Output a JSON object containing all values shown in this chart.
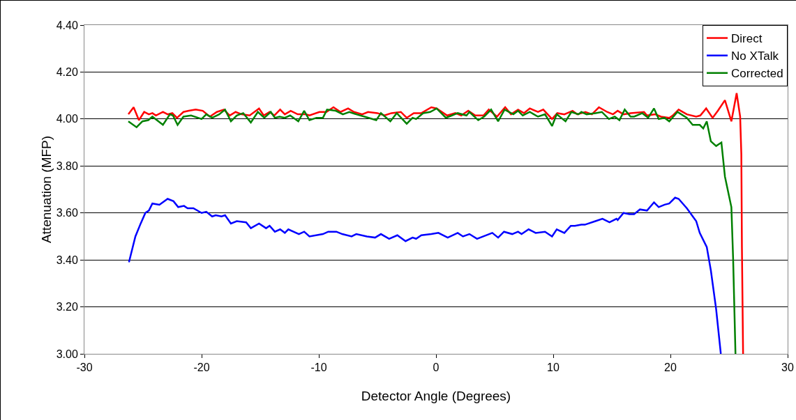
{
  "chart_data": {
    "type": "line",
    "xlabel": "Detector Angle (Degrees)",
    "ylabel": "Attenuation (MFP)",
    "xlim": [
      -30,
      30
    ],
    "xticks": [
      -30,
      -20,
      -10,
      0,
      10,
      20,
      30
    ],
    "ylim": [
      3.0,
      4.4
    ],
    "yticks": [
      {
        "value": 3.0,
        "label": "3.00"
      },
      {
        "value": 3.2,
        "label": "3.20"
      },
      {
        "value": 3.4,
        "label": "3.40"
      },
      {
        "value": 3.6,
        "label": "3.60"
      },
      {
        "value": 3.8,
        "label": "3.80"
      },
      {
        "value": 4.0,
        "label": "4.00"
      },
      {
        "value": 4.2,
        "label": "4.20"
      },
      {
        "value": 4.4,
        "label": "4.40"
      }
    ],
    "grid": "y",
    "legend": "top right",
    "marker": "none",
    "line_style": "solid",
    "series": [
      {
        "name": "Direct",
        "color": "#ff0000",
        "x": [
          -26.25,
          -25.8,
          -25.35,
          -24.9,
          -24.5,
          -24.2,
          -23.9,
          -23.3,
          -22.9,
          -22.5,
          -22.1,
          -21.55,
          -21.1,
          -20.5,
          -19.9,
          -19.3,
          -18.7,
          -18.1,
          -17.6,
          -17.1,
          -16.6,
          -15.9,
          -15.1,
          -14.7,
          -14.2,
          -13.8,
          -13.3,
          -12.9,
          -12.4,
          -11.8,
          -11.1,
          -10.8,
          -9.95,
          -9.35,
          -8.75,
          -8.15,
          -7.5,
          -7.0,
          -6.3,
          -5.8,
          -5.0,
          -4.4,
          -3.8,
          -3.0,
          -2.5,
          -1.9,
          -1.25,
          -0.4,
          0.05,
          0.95,
          1.65,
          2.15,
          2.75,
          3.35,
          4.05,
          4.5,
          5.2,
          5.9,
          6.4,
          7.0,
          7.5,
          8.0,
          8.7,
          9.15,
          9.9,
          10.35,
          10.95,
          11.65,
          12.05,
          12.75,
          13.3,
          13.9,
          14.6,
          15.1,
          15.5,
          16.0,
          16.6,
          17.75,
          18.0,
          18.7,
          19.2,
          19.9,
          20.2,
          20.7,
          21.4,
          22.2,
          22.55,
          23.05,
          23.6,
          24.05,
          24.65,
          25.2,
          25.65,
          25.95,
          26.05,
          26.1,
          26.2
        ],
        "values": [
          4.02,
          4.05,
          3.995,
          4.03,
          4.02,
          4.025,
          4.015,
          4.03,
          4.02,
          4.025,
          4.005,
          4.03,
          4.035,
          4.04,
          4.035,
          4.01,
          4.03,
          4.04,
          4.015,
          4.03,
          4.02,
          4.015,
          4.045,
          4.015,
          4.03,
          4.015,
          4.04,
          4.02,
          4.035,
          4.02,
          4.02,
          4.015,
          4.03,
          4.03,
          4.05,
          4.03,
          4.045,
          4.03,
          4.02,
          4.03,
          4.025,
          4.015,
          4.025,
          4.03,
          4.005,
          4.025,
          4.025,
          4.05,
          4.045,
          4.015,
          4.025,
          4.015,
          4.035,
          4.015,
          4.015,
          4.04,
          4.01,
          4.05,
          4.02,
          4.04,
          4.025,
          4.045,
          4.03,
          4.04,
          4.0,
          4.025,
          4.02,
          4.035,
          4.02,
          4.03,
          4.02,
          4.05,
          4.03,
          4.02,
          4.035,
          4.02,
          4.025,
          4.03,
          4.015,
          4.02,
          4.01,
          4.005,
          4.015,
          4.04,
          4.02,
          4.01,
          4.015,
          4.045,
          4.005,
          4.035,
          4.08,
          3.99,
          4.11,
          4.01,
          3.85,
          3.455,
          3.0
        ]
      },
      {
        "name": "No XTalk",
        "color": "#0000ff",
        "x": [
          -26.2,
          -25.65,
          -25.2,
          -24.8,
          -24.5,
          -24.2,
          -23.6,
          -22.9,
          -22.4,
          -22.0,
          -21.5,
          -21.2,
          -20.7,
          -20.0,
          -19.6,
          -19.1,
          -18.8,
          -18.3,
          -18.0,
          -17.5,
          -17.0,
          -16.2,
          -15.8,
          -15.1,
          -14.5,
          -14.2,
          -13.75,
          -13.3,
          -12.9,
          -12.6,
          -11.7,
          -11.25,
          -10.8,
          -9.65,
          -9.2,
          -8.5,
          -8.0,
          -7.2,
          -6.8,
          -5.9,
          -5.2,
          -4.7,
          -4.0,
          -3.3,
          -2.6,
          -2.0,
          -1.7,
          -1.25,
          -0.4,
          0.2,
          1.0,
          1.85,
          2.3,
          2.85,
          3.5,
          4.8,
          5.3,
          5.8,
          6.5,
          7.0,
          7.3,
          7.9,
          8.5,
          9.3,
          9.9,
          10.3,
          10.95,
          11.5,
          11.85,
          12.4,
          12.7,
          13.6,
          14.2,
          14.8,
          15.4,
          15.5,
          16.0,
          16.5,
          16.9,
          17.4,
          18.0,
          18.6,
          19.0,
          19.5,
          19.9,
          20.4,
          20.7,
          21.4,
          22.2,
          22.5,
          23.1,
          23.45,
          23.9,
          24.3
        ],
        "values": [
          3.39,
          3.5,
          3.555,
          3.6,
          3.61,
          3.64,
          3.635,
          3.66,
          3.65,
          3.625,
          3.63,
          3.62,
          3.62,
          3.6,
          3.605,
          3.585,
          3.59,
          3.585,
          3.59,
          3.555,
          3.565,
          3.56,
          3.535,
          3.555,
          3.535,
          3.545,
          3.52,
          3.53,
          3.515,
          3.53,
          3.51,
          3.52,
          3.5,
          3.51,
          3.52,
          3.52,
          3.51,
          3.5,
          3.51,
          3.5,
          3.495,
          3.51,
          3.49,
          3.505,
          3.48,
          3.495,
          3.49,
          3.505,
          3.51,
          3.515,
          3.495,
          3.515,
          3.5,
          3.51,
          3.49,
          3.515,
          3.495,
          3.52,
          3.51,
          3.52,
          3.51,
          3.53,
          3.515,
          3.52,
          3.5,
          3.53,
          3.515,
          3.545,
          3.545,
          3.55,
          3.55,
          3.565,
          3.575,
          3.56,
          3.575,
          3.57,
          3.6,
          3.595,
          3.595,
          3.615,
          3.61,
          3.645,
          3.625,
          3.635,
          3.64,
          3.665,
          3.66,
          3.62,
          3.565,
          3.515,
          3.455,
          3.355,
          3.19,
          3.0
        ]
      },
      {
        "name": "Corrected",
        "color": "#008000",
        "x": [
          -26.25,
          -25.55,
          -25.05,
          -24.55,
          -24.2,
          -23.3,
          -22.7,
          -22.45,
          -22.05,
          -21.55,
          -20.9,
          -20.0,
          -19.6,
          -19.1,
          -18.5,
          -18.0,
          -17.5,
          -17.0,
          -16.45,
          -15.8,
          -15.2,
          -14.65,
          -14.1,
          -13.75,
          -13.35,
          -12.9,
          -12.45,
          -11.75,
          -11.25,
          -10.8,
          -10.2,
          -9.65,
          -9.3,
          -8.55,
          -7.95,
          -7.4,
          -6.8,
          -6.1,
          -5.1,
          -4.7,
          -3.9,
          -3.35,
          -2.5,
          -2.0,
          -1.7,
          -1.1,
          -0.5,
          0.05,
          0.85,
          1.85,
          2.6,
          2.85,
          3.6,
          4.1,
          4.7,
          5.3,
          5.85,
          6.6,
          7.0,
          7.4,
          8.0,
          8.7,
          9.3,
          9.9,
          10.3,
          11.05,
          11.55,
          12.15,
          12.4,
          12.85,
          13.6,
          14.15,
          14.75,
          15.25,
          15.65,
          16.1,
          16.6,
          16.9,
          17.6,
          18.1,
          18.6,
          19.0,
          19.5,
          19.9,
          20.6,
          21.4,
          21.9,
          22.5,
          22.8,
          23.1,
          23.45,
          23.9,
          24.35,
          24.65,
          25.2,
          25.35,
          25.55
        ],
        "values": [
          3.99,
          3.965,
          3.99,
          3.995,
          4.01,
          3.975,
          4.02,
          4.015,
          3.975,
          4.01,
          4.015,
          4.0,
          4.02,
          4.005,
          4.02,
          4.04,
          3.99,
          4.015,
          4.025,
          3.985,
          4.03,
          4.005,
          4.03,
          4.005,
          4.01,
          4.005,
          4.015,
          3.99,
          4.035,
          3.995,
          4.005,
          4.005,
          4.04,
          4.035,
          4.02,
          4.03,
          4.02,
          4.01,
          3.995,
          4.025,
          3.99,
          4.025,
          3.98,
          4.005,
          4.0,
          4.025,
          4.03,
          4.045,
          4.005,
          4.025,
          4.015,
          4.03,
          3.995,
          4.01,
          4.04,
          3.99,
          4.04,
          4.02,
          4.035,
          4.015,
          4.03,
          4.01,
          4.02,
          3.97,
          4.02,
          3.99,
          4.03,
          4.02,
          4.03,
          4.02,
          4.025,
          4.03,
          4.0,
          4.01,
          3.995,
          4.04,
          4.01,
          4.01,
          4.025,
          4.005,
          4.045,
          4.0,
          4.005,
          3.99,
          4.03,
          4.005,
          3.975,
          3.975,
          3.96,
          3.99,
          3.905,
          3.885,
          3.9,
          3.755,
          3.625,
          3.405,
          3.0
        ]
      }
    ]
  }
}
